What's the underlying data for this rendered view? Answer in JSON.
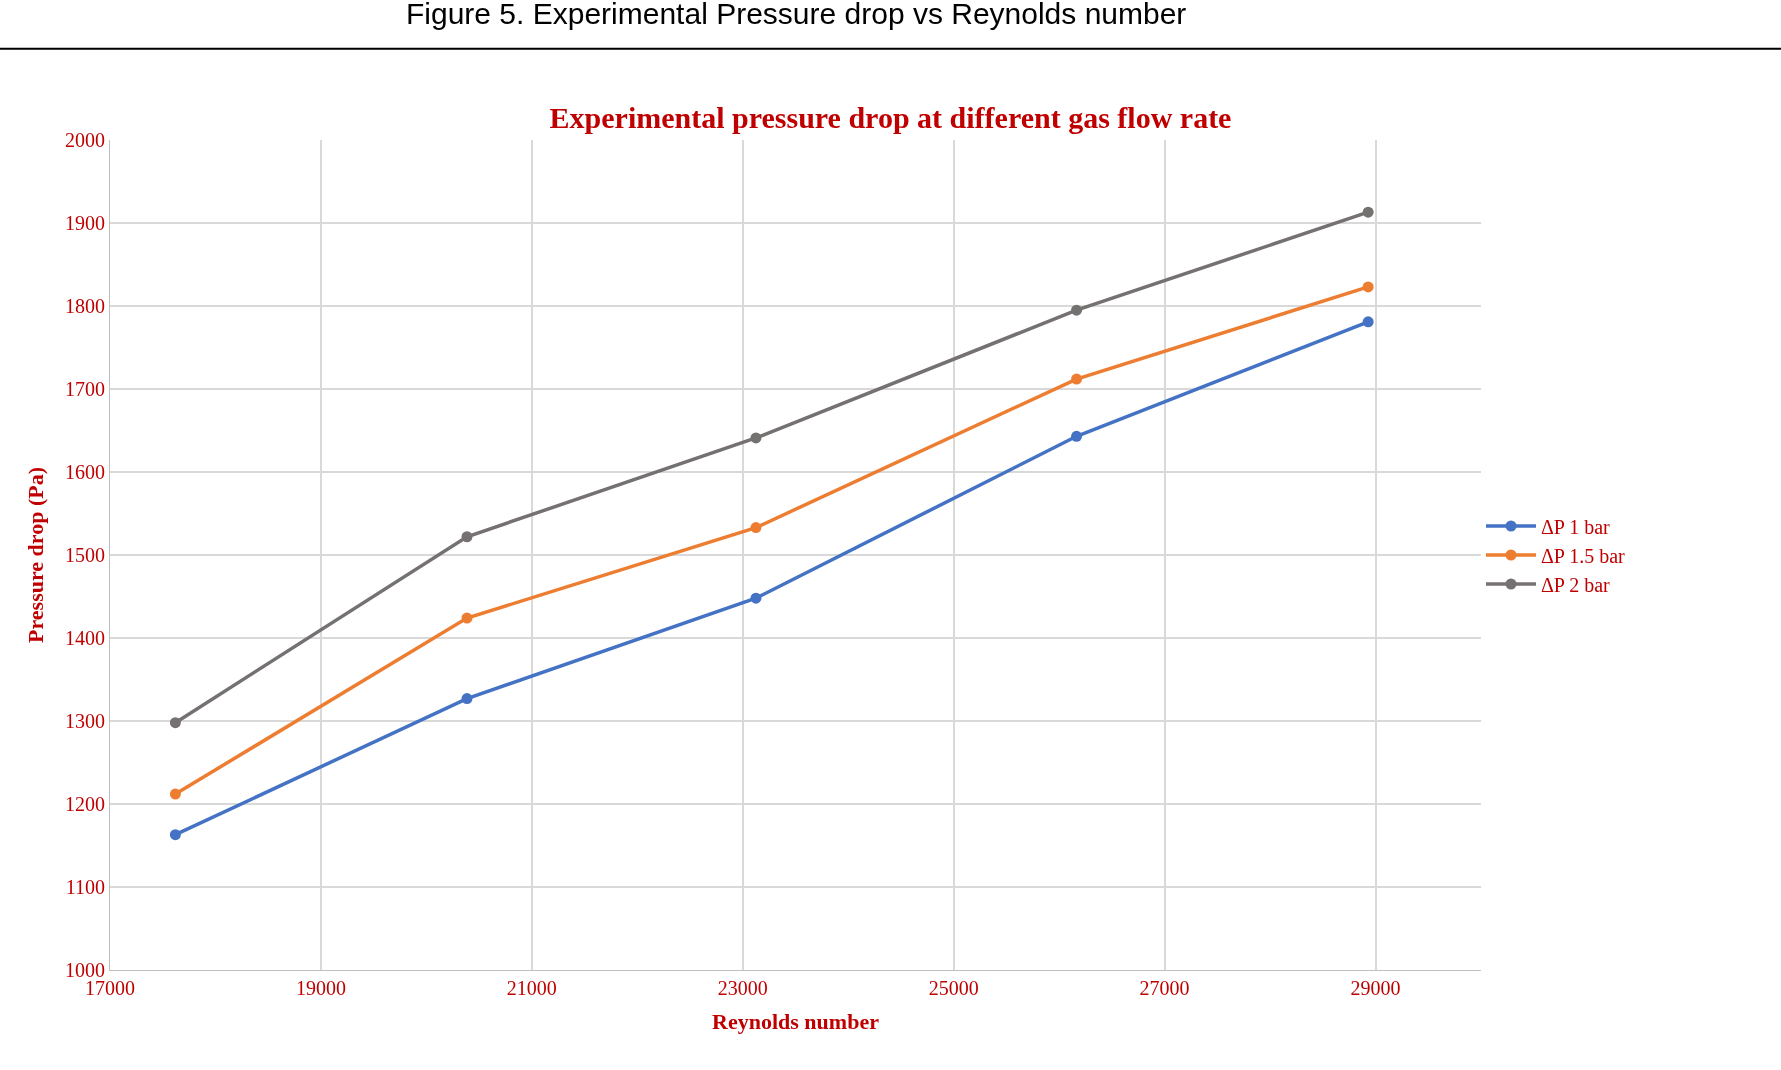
{
  "chart_data": {
    "type": "line",
    "title": "Experimental pressure drop at different gas flow rate",
    "xlabel": "Reynolds number",
    "ylabel": "Pressure drop (Pa)",
    "annotations": [
      "Figure 5. Experimental Pressure drop vs Reynolds number"
    ],
    "x": [
      17620,
      20385,
      23125,
      26165,
      28930
    ],
    "series": [
      {
        "name": "ΔP 1 bar",
        "color": "#4472c4",
        "values": [
          1163,
          1327,
          1448,
          1643,
          1781
        ]
      },
      {
        "name": "ΔP 1.5 bar",
        "color": "#ed7d31",
        "values": [
          1212,
          1424,
          1533,
          1712,
          1823
        ]
      },
      {
        "name": "ΔP 2 bar",
        "color": "#767171",
        "values": [
          1298,
          1522,
          1641,
          1795,
          1913
        ]
      }
    ],
    "xlim": [
      17000,
      30000
    ],
    "xticks": [
      17000,
      19000,
      21000,
      23000,
      25000,
      27000,
      29000
    ],
    "ylim": [
      1000,
      2000
    ],
    "yticks": [
      1000,
      1100,
      1200,
      1300,
      1400,
      1500,
      1600,
      1700,
      1800,
      1900,
      2000
    ],
    "grid": true,
    "legend": "right",
    "marker": "circle",
    "line_style": "solid"
  }
}
